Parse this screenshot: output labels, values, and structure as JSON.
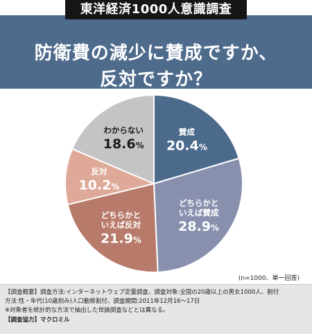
{
  "tag": "東洋経済1000人意識調査",
  "question_line1": "防衛費の減少に賛成ですか、",
  "question_line2": "反対ですか？",
  "note": "(n=1000、単一回答)",
  "footer": {
    "line1": "【調査概要】調査方法:インターネットウェブ定量調査、調査対象:全国の20歳以上の男女1000人、割付",
    "line2": "方法:性・年代(10歳刻み)人口動態割付、調査期間:2011年12月16〜17日",
    "line3": "※対象者を統計的な方法で抽出した世論調査などとは異なる。",
    "line4": "【調査協力】マクロミル"
  },
  "chart_data": {
    "type": "pie",
    "unit": "%",
    "slices": [
      {
        "label": "賛成",
        "label_lines": [
          "賛成"
        ],
        "value": 20.4,
        "value_text": "20.4",
        "color": "#4c6a8c",
        "text_color": "#ffffff"
      },
      {
        "label": "どちらかといえば賛成",
        "label_lines": [
          "どちらかと",
          "いえば賛成"
        ],
        "value": 28.9,
        "value_text": "28.9",
        "color": "#8890ae",
        "text_color": "#ffffff"
      },
      {
        "label": "どちらかといえば反対",
        "label_lines": [
          "どちらかと",
          "いえば反対"
        ],
        "value": 21.9,
        "value_text": "21.9",
        "color": "#b87a6b",
        "text_color": "#ffffff"
      },
      {
        "label": "反対",
        "label_lines": [
          "反対"
        ],
        "value": 10.2,
        "value_text": "10.2",
        "color": "#dea999",
        "text_color": "#ffffff"
      },
      {
        "label": "わからない",
        "label_lines": [
          "わからない"
        ],
        "value": 18.6,
        "value_text": "18.6",
        "color": "#c4c4c6",
        "text_color": "#1a1a1a"
      }
    ]
  }
}
